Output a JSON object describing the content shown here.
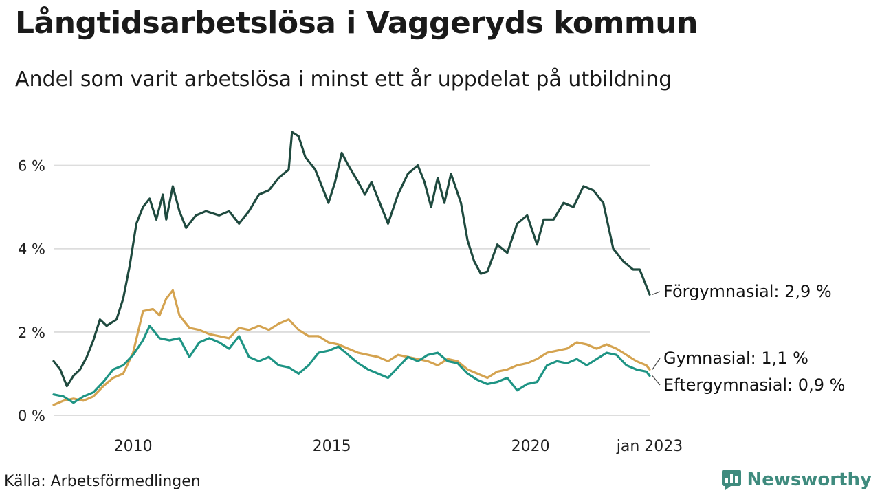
{
  "header": {
    "title": "Långtidsarbetslösa i Vaggeryds kommun",
    "subtitle": "Andel som varit arbetslösa i minst ett år uppdelat på utbildning"
  },
  "footer": {
    "source": "Källa: Arbetsförmedlingen",
    "brand": "Newsworthy"
  },
  "colors": {
    "forgymnasial": "#1f4a3f",
    "gymnasial": "#d4a350",
    "eftergymnasial": "#1e9484",
    "grid": "#dddddd",
    "brand": "#3f8b7e"
  },
  "chart_data": {
    "type": "line",
    "title": "Långtidsarbetslösa i Vaggeryds kommun",
    "subtitle": "Andel som varit arbetslösa i minst ett år uppdelat på utbildning",
    "xlabel": "",
    "ylabel": "",
    "ylim": [
      0,
      7
    ],
    "y_ticks": [
      0,
      2,
      4,
      6
    ],
    "y_tick_labels": [
      "0 %",
      "2 %",
      "4 %",
      "6 %"
    ],
    "x_range": [
      "2008-01",
      "2023-01"
    ],
    "x_ticks": [
      "2010-01",
      "2015-01",
      "2020-01",
      "2023-01"
    ],
    "x_tick_labels": [
      "2010",
      "2015",
      "2020",
      "jan 2023"
    ],
    "grid": true,
    "legend": "direct labels at line ends",
    "series": [
      {
        "name": "Förgymnasial",
        "end_label": "Förgymnasial: 2,9 %",
        "points": [
          [
            "2008-01",
            1.3
          ],
          [
            "2008-03",
            1.1
          ],
          [
            "2008-05",
            0.7
          ],
          [
            "2008-07",
            0.95
          ],
          [
            "2008-09",
            1.1
          ],
          [
            "2008-11",
            1.4
          ],
          [
            "2009-01",
            1.8
          ],
          [
            "2009-03",
            2.3
          ],
          [
            "2009-05",
            2.15
          ],
          [
            "2009-08",
            2.3
          ],
          [
            "2009-10",
            2.8
          ],
          [
            "2009-12",
            3.6
          ],
          [
            "2010-02",
            4.6
          ],
          [
            "2010-04",
            5.0
          ],
          [
            "2010-06",
            5.2
          ],
          [
            "2010-08",
            4.7
          ],
          [
            "2010-10",
            5.3
          ],
          [
            "2010-11",
            4.7
          ],
          [
            "2011-01",
            5.5
          ],
          [
            "2011-03",
            4.9
          ],
          [
            "2011-05",
            4.5
          ],
          [
            "2011-08",
            4.8
          ],
          [
            "2011-11",
            4.9
          ],
          [
            "2012-03",
            4.8
          ],
          [
            "2012-06",
            4.9
          ],
          [
            "2012-09",
            4.6
          ],
          [
            "2012-12",
            4.9
          ],
          [
            "2013-03",
            5.3
          ],
          [
            "2013-06",
            5.4
          ],
          [
            "2013-09",
            5.7
          ],
          [
            "2013-12",
            5.9
          ],
          [
            "2014-01",
            6.8
          ],
          [
            "2014-03",
            6.7
          ],
          [
            "2014-05",
            6.2
          ],
          [
            "2014-08",
            5.9
          ],
          [
            "2014-10",
            5.5
          ],
          [
            "2014-12",
            5.1
          ],
          [
            "2015-02",
            5.6
          ],
          [
            "2015-04",
            6.3
          ],
          [
            "2015-06",
            6.0
          ],
          [
            "2015-09",
            5.6
          ],
          [
            "2015-11",
            5.3
          ],
          [
            "2016-01",
            5.6
          ],
          [
            "2016-03",
            5.2
          ],
          [
            "2016-06",
            4.6
          ],
          [
            "2016-09",
            5.3
          ],
          [
            "2016-12",
            5.8
          ],
          [
            "2017-03",
            6.0
          ],
          [
            "2017-05",
            5.6
          ],
          [
            "2017-07",
            5.0
          ],
          [
            "2017-09",
            5.7
          ],
          [
            "2017-11",
            5.1
          ],
          [
            "2018-01",
            5.8
          ],
          [
            "2018-04",
            5.1
          ],
          [
            "2018-06",
            4.2
          ],
          [
            "2018-08",
            3.7
          ],
          [
            "2018-10",
            3.4
          ],
          [
            "2018-12",
            3.45
          ],
          [
            "2019-03",
            4.1
          ],
          [
            "2019-06",
            3.9
          ],
          [
            "2019-09",
            4.6
          ],
          [
            "2019-12",
            4.8
          ],
          [
            "2020-03",
            4.1
          ],
          [
            "2020-05",
            4.7
          ],
          [
            "2020-08",
            4.7
          ],
          [
            "2020-11",
            5.1
          ],
          [
            "2021-02",
            5.0
          ],
          [
            "2021-05",
            5.5
          ],
          [
            "2021-08",
            5.4
          ],
          [
            "2021-11",
            5.1
          ],
          [
            "2022-02",
            4.0
          ],
          [
            "2022-05",
            3.7
          ],
          [
            "2022-08",
            3.5
          ],
          [
            "2022-10",
            3.5
          ],
          [
            "2022-12",
            3.1
          ],
          [
            "2023-01",
            2.9
          ]
        ]
      },
      {
        "name": "Gymnasial",
        "end_label": "Gymnasial: 1,1 %",
        "points": [
          [
            "2008-01",
            0.25
          ],
          [
            "2008-04",
            0.35
          ],
          [
            "2008-07",
            0.4
          ],
          [
            "2008-10",
            0.35
          ],
          [
            "2009-01",
            0.45
          ],
          [
            "2009-04",
            0.7
          ],
          [
            "2009-07",
            0.9
          ],
          [
            "2009-10",
            1.0
          ],
          [
            "2010-01",
            1.5
          ],
          [
            "2010-04",
            2.5
          ],
          [
            "2010-07",
            2.55
          ],
          [
            "2010-09",
            2.4
          ],
          [
            "2010-11",
            2.8
          ],
          [
            "2011-01",
            3.0
          ],
          [
            "2011-03",
            2.4
          ],
          [
            "2011-06",
            2.1
          ],
          [
            "2011-09",
            2.05
          ],
          [
            "2011-12",
            1.95
          ],
          [
            "2012-03",
            1.9
          ],
          [
            "2012-06",
            1.85
          ],
          [
            "2012-09",
            2.1
          ],
          [
            "2012-12",
            2.05
          ],
          [
            "2013-03",
            2.15
          ],
          [
            "2013-06",
            2.05
          ],
          [
            "2013-09",
            2.2
          ],
          [
            "2013-12",
            2.3
          ],
          [
            "2014-03",
            2.05
          ],
          [
            "2014-06",
            1.9
          ],
          [
            "2014-09",
            1.9
          ],
          [
            "2014-12",
            1.75
          ],
          [
            "2015-03",
            1.7
          ],
          [
            "2015-06",
            1.6
          ],
          [
            "2015-09",
            1.5
          ],
          [
            "2015-12",
            1.45
          ],
          [
            "2016-03",
            1.4
          ],
          [
            "2016-06",
            1.3
          ],
          [
            "2016-09",
            1.45
          ],
          [
            "2016-12",
            1.4
          ],
          [
            "2017-03",
            1.35
          ],
          [
            "2017-06",
            1.3
          ],
          [
            "2017-09",
            1.2
          ],
          [
            "2017-12",
            1.35
          ],
          [
            "2018-03",
            1.3
          ],
          [
            "2018-06",
            1.1
          ],
          [
            "2018-09",
            1.0
          ],
          [
            "2018-12",
            0.9
          ],
          [
            "2019-03",
            1.05
          ],
          [
            "2019-06",
            1.1
          ],
          [
            "2019-09",
            1.2
          ],
          [
            "2019-12",
            1.25
          ],
          [
            "2020-03",
            1.35
          ],
          [
            "2020-06",
            1.5
          ],
          [
            "2020-09",
            1.55
          ],
          [
            "2020-12",
            1.6
          ],
          [
            "2021-03",
            1.75
          ],
          [
            "2021-06",
            1.7
          ],
          [
            "2021-09",
            1.6
          ],
          [
            "2021-12",
            1.7
          ],
          [
            "2022-03",
            1.6
          ],
          [
            "2022-06",
            1.45
          ],
          [
            "2022-09",
            1.3
          ],
          [
            "2022-12",
            1.2
          ],
          [
            "2023-01",
            1.1
          ]
        ]
      },
      {
        "name": "Eftergymnasial",
        "end_label": "Eftergymnasial: 0,9 %",
        "points": [
          [
            "2008-01",
            0.5
          ],
          [
            "2008-04",
            0.45
          ],
          [
            "2008-07",
            0.3
          ],
          [
            "2008-10",
            0.45
          ],
          [
            "2009-01",
            0.55
          ],
          [
            "2009-04",
            0.8
          ],
          [
            "2009-07",
            1.1
          ],
          [
            "2009-10",
            1.2
          ],
          [
            "2010-01",
            1.45
          ],
          [
            "2010-04",
            1.8
          ],
          [
            "2010-06",
            2.15
          ],
          [
            "2010-09",
            1.85
          ],
          [
            "2010-12",
            1.8
          ],
          [
            "2011-03",
            1.85
          ],
          [
            "2011-06",
            1.4
          ],
          [
            "2011-09",
            1.75
          ],
          [
            "2011-12",
            1.85
          ],
          [
            "2012-03",
            1.75
          ],
          [
            "2012-06",
            1.6
          ],
          [
            "2012-09",
            1.9
          ],
          [
            "2012-12",
            1.4
          ],
          [
            "2013-03",
            1.3
          ],
          [
            "2013-06",
            1.4
          ],
          [
            "2013-09",
            1.2
          ],
          [
            "2013-12",
            1.15
          ],
          [
            "2014-03",
            1.0
          ],
          [
            "2014-06",
            1.2
          ],
          [
            "2014-09",
            1.5
          ],
          [
            "2014-12",
            1.55
          ],
          [
            "2015-03",
            1.65
          ],
          [
            "2015-06",
            1.45
          ],
          [
            "2015-09",
            1.25
          ],
          [
            "2015-12",
            1.1
          ],
          [
            "2016-03",
            1.0
          ],
          [
            "2016-06",
            0.9
          ],
          [
            "2016-09",
            1.15
          ],
          [
            "2016-12",
            1.4
          ],
          [
            "2017-03",
            1.3
          ],
          [
            "2017-06",
            1.45
          ],
          [
            "2017-09",
            1.5
          ],
          [
            "2017-12",
            1.3
          ],
          [
            "2018-03",
            1.25
          ],
          [
            "2018-06",
            1.0
          ],
          [
            "2018-09",
            0.85
          ],
          [
            "2018-12",
            0.75
          ],
          [
            "2019-03",
            0.8
          ],
          [
            "2019-06",
            0.9
          ],
          [
            "2019-09",
            0.6
          ],
          [
            "2019-12",
            0.75
          ],
          [
            "2020-03",
            0.8
          ],
          [
            "2020-06",
            1.2
          ],
          [
            "2020-09",
            1.3
          ],
          [
            "2020-12",
            1.25
          ],
          [
            "2021-03",
            1.35
          ],
          [
            "2021-06",
            1.2
          ],
          [
            "2021-09",
            1.35
          ],
          [
            "2021-12",
            1.5
          ],
          [
            "2022-03",
            1.45
          ],
          [
            "2022-06",
            1.2
          ],
          [
            "2022-09",
            1.1
          ],
          [
            "2022-12",
            1.05
          ],
          [
            "2023-01",
            0.95
          ]
        ]
      }
    ]
  }
}
